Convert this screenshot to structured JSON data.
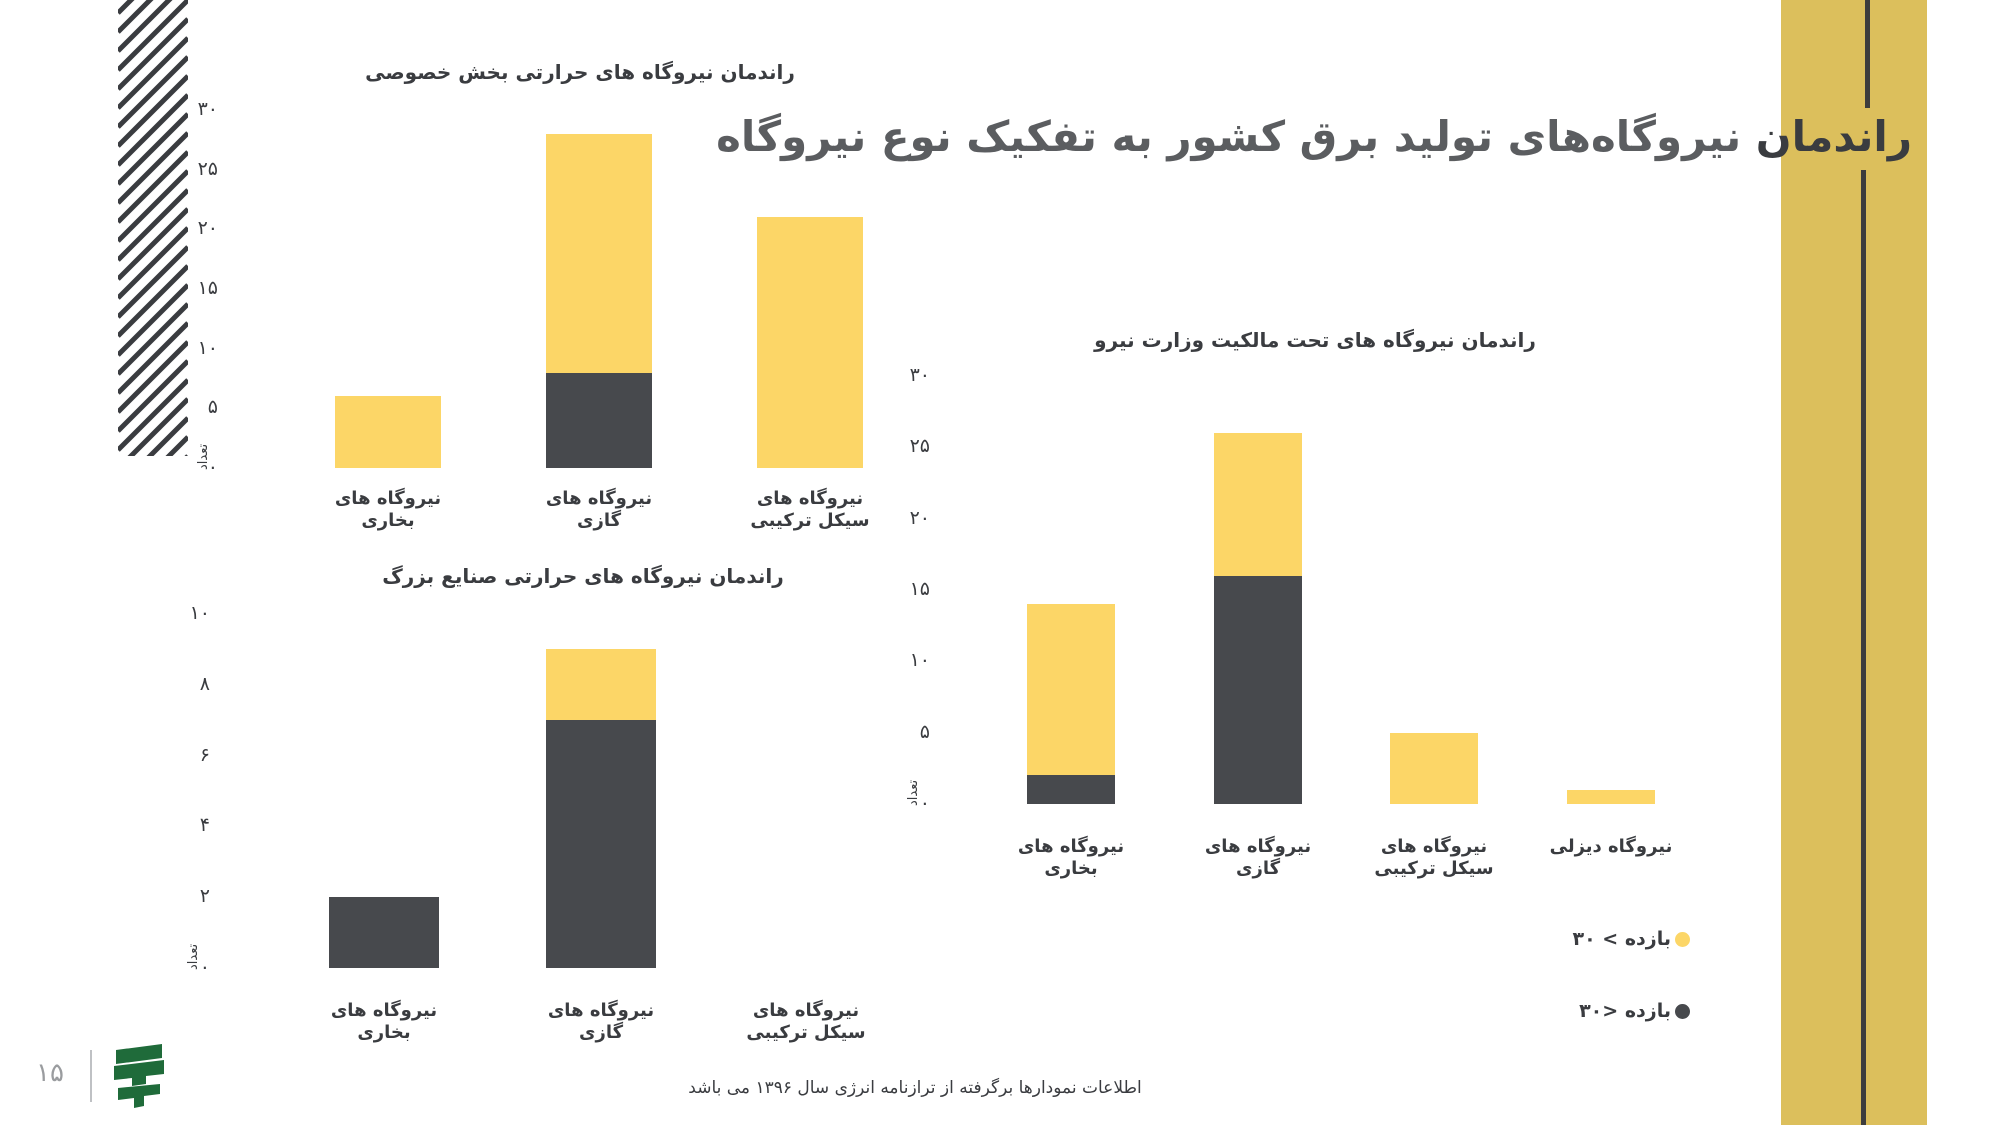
{
  "page": {
    "title_part1": "راندمان ",
    "title_part2": "نیروگاه‌های تولید برق کشور به تفکیک نوع نیروگاه",
    "footer": "اطلاعات نمودارها برگرفته از ترازنامه انرژی سال ۱۳۹۶ می باشد",
    "page_number": "۱۵",
    "colors": {
      "yellow": "#fcd667",
      "dark": "#47494d",
      "band": "#dcbf5c",
      "line": "#3d3d3d"
    }
  },
  "legend": [
    {
      "label": "بازده > ۳۰",
      "color": "#fcd667"
    },
    {
      "label": "بازده <۳۰",
      "color": "#47494d"
    }
  ],
  "chart_data": [
    {
      "type": "bar",
      "stacked": true,
      "title": "راندمان نیروگاه های حرارتی بخش خصوصی",
      "ylabel": "تعداد",
      "ylim": [
        0,
        30
      ],
      "yticks": [
        "۰",
        "۵",
        "۱۰",
        "۱۵",
        "۲۰",
        "۲۵",
        "۳۰"
      ],
      "categories": [
        {
          "line1": "نیروگاه های",
          "line2": "بخاری"
        },
        {
          "line1": "نیروگاه های",
          "line2": "گازی"
        },
        {
          "line1": "نیروگاه های",
          "line2": "سیکل ترکیبی"
        }
      ],
      "series": [
        {
          "name": "بازده <۳۰",
          "color": "#47494d",
          "values": [
            0,
            8,
            0
          ]
        },
        {
          "name": "بازده > ۳۰",
          "color": "#fcd667",
          "values": [
            6,
            20,
            21
          ]
        }
      ]
    },
    {
      "type": "bar",
      "stacked": true,
      "title": "راندمان نیروگاه های حرارتی صنایع بزرگ",
      "ylabel": "تعداد",
      "ylim": [
        0,
        10
      ],
      "yticks": [
        "۰",
        "۲",
        "۴",
        "۶",
        "۸",
        "۱۰"
      ],
      "categories": [
        {
          "line1": "نیروگاه های",
          "line2": "بخاری"
        },
        {
          "line1": "نیروگاه های",
          "line2": "گازی"
        },
        {
          "line1": "نیروگاه های",
          "line2": "سیکل ترکیبی"
        }
      ],
      "series": [
        {
          "name": "بازده <۳۰",
          "color": "#47494d",
          "values": [
            2,
            7,
            0
          ]
        },
        {
          "name": "بازده > ۳۰",
          "color": "#fcd667",
          "values": [
            0,
            2,
            0
          ]
        }
      ]
    },
    {
      "type": "bar",
      "stacked": true,
      "title": "راندمان نیروگاه های تحت مالکیت وزارت نیرو",
      "ylabel": "تعداد",
      "ylim": [
        0,
        30
      ],
      "yticks": [
        "۰",
        "۵",
        "۱۰",
        "۱۵",
        "۲۰",
        "۲۵",
        "۳۰"
      ],
      "categories": [
        {
          "line1": "نیروگاه های",
          "line2": "بخاری"
        },
        {
          "line1": "نیروگاه های",
          "line2": "گازی"
        },
        {
          "line1": "نیروگاه های",
          "line2": "سیکل ترکیبی"
        },
        {
          "line1": "نیروگاه دیزلی",
          "line2": ""
        }
      ],
      "series": [
        {
          "name": "بازده <۳۰",
          "color": "#47494d",
          "values": [
            2,
            16,
            0,
            0
          ]
        },
        {
          "name": "بازده > ۳۰",
          "color": "#fcd667",
          "values": [
            12,
            10,
            5,
            1
          ]
        }
      ]
    }
  ]
}
